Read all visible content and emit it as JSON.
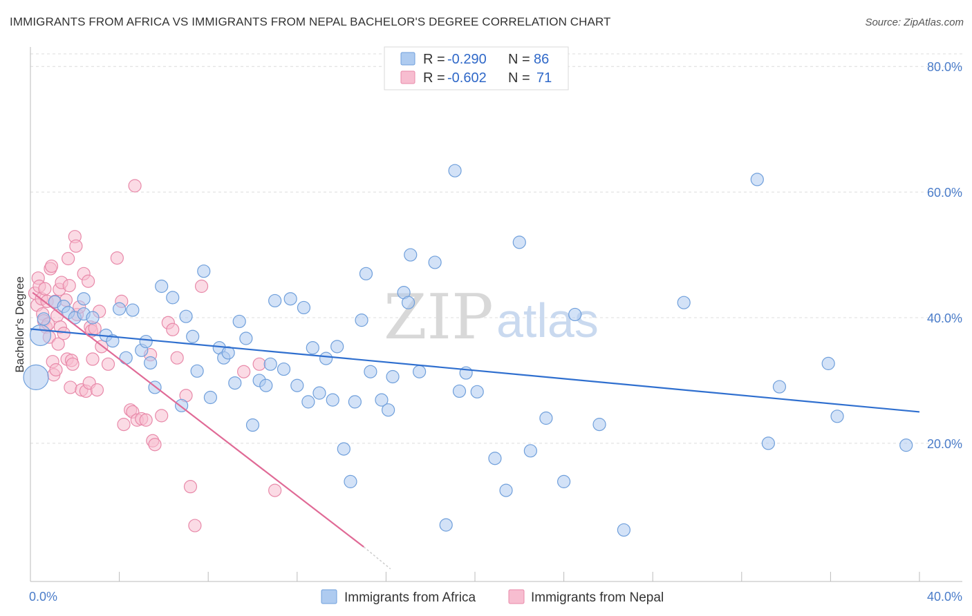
{
  "title": "IMMIGRANTS FROM AFRICA VS IMMIGRANTS FROM NEPAL BACHELOR'S DEGREE CORRELATION CHART",
  "source": "Source: ZipAtlas.com",
  "watermark": {
    "part1": "ZIP",
    "part2": "atlas"
  },
  "colors": {
    "africa_fill": "#aecbf0",
    "africa_stroke": "#6f9fdb",
    "africa_line": "#2f6fcf",
    "nepal_fill": "#f7bdd0",
    "nepal_stroke": "#e889a9",
    "nepal_line": "#e06a96"
  },
  "legend": {
    "items": [
      {
        "r_label": "R = ",
        "r_value": "-0.290",
        "n_label": "N = ",
        "n_value": "86"
      },
      {
        "r_label": "R = ",
        "r_value": "-0.602",
        "n_label": "N = ",
        "n_value": "71"
      }
    ]
  },
  "chart_data": {
    "type": "scatter",
    "title": "IMMIGRANTS FROM AFRICA VS IMMIGRANTS FROM NEPAL BACHELOR'S DEGREE CORRELATION CHART",
    "xlabel": "",
    "ylabel": "Bachelor's Degree",
    "xlim": [
      0,
      40
    ],
    "ylim": [
      -2,
      82
    ],
    "x_tick_labels": [
      "0.0%",
      "40.0%"
    ],
    "y_ticks": [
      20,
      40,
      60,
      80
    ],
    "y_tick_labels": [
      "20.0%",
      "40.0%",
      "60.0%",
      "80.0%"
    ],
    "grid": true,
    "legend_position": "top-center",
    "series": [
      {
        "name": "Immigrants from Africa",
        "points": [
          [
            0.25,
            30.5,
            3
          ],
          [
            0.45,
            37.2,
            2
          ],
          [
            0.6,
            39.8,
            1
          ],
          [
            1.1,
            42.5,
            1
          ],
          [
            1.5,
            41.8,
            1
          ],
          [
            1.7,
            40.8,
            1
          ],
          [
            2.0,
            40.0,
            1
          ],
          [
            2.4,
            40.6,
            1
          ],
          [
            2.4,
            43.0,
            1
          ],
          [
            2.8,
            40.0,
            1
          ],
          [
            3.4,
            37.2,
            1
          ],
          [
            3.7,
            36.3,
            1
          ],
          [
            4.0,
            41.4,
            1
          ],
          [
            4.3,
            33.6,
            1
          ],
          [
            4.6,
            41.2,
            1
          ],
          [
            5.0,
            34.8,
            1
          ],
          [
            5.2,
            36.2,
            1
          ],
          [
            5.4,
            32.8,
            1
          ],
          [
            5.6,
            28.9,
            1
          ],
          [
            5.9,
            45.0,
            1
          ],
          [
            6.4,
            43.2,
            1
          ],
          [
            6.8,
            26.0,
            1
          ],
          [
            7.0,
            40.2,
            1
          ],
          [
            7.3,
            37.0,
            1
          ],
          [
            7.5,
            31.5,
            1
          ],
          [
            7.8,
            47.4,
            1
          ],
          [
            8.1,
            27.3,
            1
          ],
          [
            8.5,
            35.2,
            1
          ],
          [
            8.7,
            33.6,
            1
          ],
          [
            8.9,
            34.4,
            1
          ],
          [
            9.2,
            29.6,
            1
          ],
          [
            9.4,
            39.4,
            1
          ],
          [
            9.7,
            36.7,
            1
          ],
          [
            10.0,
            22.9,
            1
          ],
          [
            10.3,
            30.0,
            1
          ],
          [
            10.6,
            29.2,
            1
          ],
          [
            10.8,
            32.6,
            1
          ],
          [
            11.0,
            42.7,
            1
          ],
          [
            11.4,
            31.8,
            1
          ],
          [
            11.7,
            43.0,
            1
          ],
          [
            12.0,
            29.2,
            1
          ],
          [
            12.3,
            41.6,
            1
          ],
          [
            12.5,
            26.6,
            1
          ],
          [
            12.7,
            35.2,
            1
          ],
          [
            13.0,
            28.0,
            1
          ],
          [
            13.3,
            33.5,
            1
          ],
          [
            13.6,
            26.9,
            1
          ],
          [
            13.8,
            35.4,
            1
          ],
          [
            14.1,
            19.1,
            1
          ],
          [
            14.4,
            13.9,
            1
          ],
          [
            14.6,
            26.6,
            1
          ],
          [
            14.9,
            39.6,
            1
          ],
          [
            15.1,
            47.0,
            1
          ],
          [
            15.3,
            31.4,
            1
          ],
          [
            15.8,
            26.9,
            1
          ],
          [
            16.1,
            25.3,
            1
          ],
          [
            16.3,
            30.6,
            1
          ],
          [
            16.8,
            44.0,
            1
          ],
          [
            17.0,
            42.4,
            1
          ],
          [
            17.1,
            50.0,
            1
          ],
          [
            17.5,
            31.4,
            1
          ],
          [
            18.2,
            48.8,
            1
          ],
          [
            18.7,
            7.0,
            1
          ],
          [
            19.1,
            63.4,
            1
          ],
          [
            19.3,
            28.3,
            1
          ],
          [
            19.6,
            31.2,
            1
          ],
          [
            20.1,
            28.2,
            1
          ],
          [
            20.9,
            17.6,
            1
          ],
          [
            21.4,
            12.5,
            1
          ],
          [
            22.0,
            52.0,
            1
          ],
          [
            22.5,
            18.8,
            1
          ],
          [
            23.2,
            24.0,
            1
          ],
          [
            24.0,
            13.9,
            1
          ],
          [
            24.5,
            40.5,
            1
          ],
          [
            25.6,
            23.0,
            1
          ],
          [
            26.7,
            6.2,
            1
          ],
          [
            29.4,
            42.4,
            1
          ],
          [
            32.7,
            62.0,
            1
          ],
          [
            33.2,
            20.0,
            1
          ],
          [
            33.7,
            29.0,
            1
          ],
          [
            35.9,
            32.7,
            1
          ],
          [
            36.3,
            24.3,
            1
          ],
          [
            39.4,
            19.7,
            1
          ]
        ],
        "trend": {
          "x": [
            0,
            40
          ],
          "y": [
            38.2,
            25.0
          ]
        }
      },
      {
        "name": "Immigrants from Nepal",
        "points": [
          [
            0.2,
            43.9,
            1
          ],
          [
            0.3,
            42.0,
            1
          ],
          [
            0.35,
            46.3,
            1
          ],
          [
            0.4,
            45.0,
            1
          ],
          [
            0.5,
            43.0,
            1
          ],
          [
            0.55,
            40.6,
            1
          ],
          [
            0.6,
            39.5,
            1
          ],
          [
            0.65,
            44.6,
            1
          ],
          [
            0.7,
            38.5,
            1
          ],
          [
            0.75,
            42.6,
            1
          ],
          [
            0.8,
            39.0,
            1
          ],
          [
            0.85,
            36.9,
            1
          ],
          [
            0.9,
            47.8,
            1
          ],
          [
            0.95,
            48.2,
            1
          ],
          [
            1.0,
            33.0,
            1
          ],
          [
            1.05,
            30.9,
            1
          ],
          [
            1.1,
            42.6,
            1
          ],
          [
            1.15,
            31.7,
            1
          ],
          [
            1.2,
            40.3,
            1
          ],
          [
            1.25,
            35.8,
            1
          ],
          [
            1.3,
            44.5,
            1
          ],
          [
            1.35,
            38.5,
            1
          ],
          [
            1.4,
            45.6,
            1
          ],
          [
            1.5,
            37.5,
            1
          ],
          [
            1.6,
            42.8,
            1
          ],
          [
            1.65,
            33.4,
            1
          ],
          [
            1.7,
            49.4,
            1
          ],
          [
            1.75,
            45.1,
            1
          ],
          [
            1.8,
            28.9,
            1
          ],
          [
            1.85,
            33.2,
            1
          ],
          [
            1.9,
            32.6,
            1
          ],
          [
            2.0,
            52.9,
            1
          ],
          [
            2.05,
            51.4,
            1
          ],
          [
            2.1,
            40.5,
            1
          ],
          [
            2.2,
            41.7,
            1
          ],
          [
            2.3,
            28.5,
            1
          ],
          [
            2.4,
            47.0,
            1
          ],
          [
            2.5,
            28.3,
            1
          ],
          [
            2.6,
            45.8,
            1
          ],
          [
            2.65,
            29.6,
            1
          ],
          [
            2.7,
            38.5,
            1
          ],
          [
            2.75,
            37.9,
            1
          ],
          [
            2.8,
            33.4,
            1
          ],
          [
            2.9,
            38.3,
            1
          ],
          [
            3.0,
            28.5,
            1
          ],
          [
            3.1,
            41.0,
            1
          ],
          [
            3.2,
            35.4,
            1
          ],
          [
            3.5,
            32.6,
            1
          ],
          [
            3.9,
            49.5,
            1
          ],
          [
            4.1,
            42.6,
            1
          ],
          [
            4.2,
            23.0,
            1
          ],
          [
            4.5,
            25.3,
            1
          ],
          [
            4.6,
            25.0,
            1
          ],
          [
            4.7,
            61.0,
            1
          ],
          [
            4.8,
            23.7,
            1
          ],
          [
            5.0,
            23.9,
            1
          ],
          [
            5.2,
            23.7,
            1
          ],
          [
            5.4,
            34.1,
            1
          ],
          [
            5.5,
            20.4,
            1
          ],
          [
            5.6,
            19.8,
            1
          ],
          [
            5.9,
            24.4,
            1
          ],
          [
            6.2,
            39.2,
            1
          ],
          [
            6.4,
            38.1,
            1
          ],
          [
            6.6,
            33.6,
            1
          ],
          [
            7.0,
            27.6,
            1
          ],
          [
            7.2,
            13.1,
            1
          ],
          [
            7.4,
            6.9,
            1
          ],
          [
            7.7,
            45.0,
            1
          ],
          [
            9.6,
            31.4,
            1
          ],
          [
            10.3,
            32.6,
            1
          ],
          [
            11.0,
            12.5,
            1
          ]
        ],
        "trend": {
          "x": [
            0.1,
            15.0
          ],
          "y": [
            44.0,
            3.5
          ]
        },
        "trend_dash": {
          "x": [
            15.0,
            16.2
          ],
          "y": [
            3.5,
            0.0
          ]
        }
      }
    ]
  }
}
